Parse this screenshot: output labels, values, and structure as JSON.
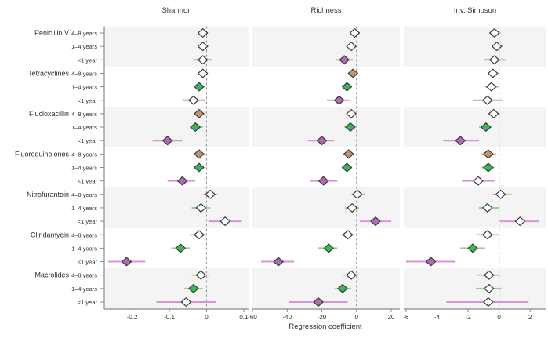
{
  "chart_data": {
    "type": "forest",
    "xlabel": "Regression coefficient",
    "panels": [
      {
        "key": "shannon",
        "title": "Shannon",
        "xlim": [
          -0.275,
          0.115
        ],
        "ticks": [
          "-0.2",
          "-0.1",
          "0",
          "0.1"
        ],
        "tick_values": [
          -0.2,
          -0.1,
          0,
          0.1
        ]
      },
      {
        "key": "richness",
        "title": "Richness",
        "xlim": [
          -60,
          25
        ],
        "ticks": [
          "-60",
          "-40",
          "-20",
          "0",
          "20"
        ],
        "tick_values": [
          -60,
          -40,
          -20,
          0,
          20
        ]
      },
      {
        "key": "inv_simpson",
        "title": "Inv. Simpson",
        "xlim": [
          -6.15,
          3.05
        ],
        "ticks": [
          "-6",
          "-4",
          "-2",
          "0",
          "2"
        ],
        "tick_values": [
          -6,
          -4,
          -2,
          0,
          2
        ]
      }
    ],
    "age_styles": {
      "age_4_8": {
        "label": "4–8 years",
        "line": "#e0c09a",
        "fill": "#c0976b"
      },
      "age_1_4": {
        "label": "1–4 years",
        "line": "#8ed48f",
        "fill": "#3cb554"
      },
      "age_lt1": {
        "label": "<1 year",
        "line": "#d994d7",
        "fill": "#b16ab0"
      }
    },
    "colors": {
      "band": "#f4f4f4",
      "zero_line": "#9a9a9a",
      "axis": "#8a8a8a",
      "marker_outline": "#3a3a3a",
      "marker_empty_fill": "#ffffff",
      "text": "#2e2e2e"
    },
    "groups": [
      {
        "name": "Penicillin V",
        "rows": [
          {
            "age": "4–8 years",
            "style": "age_4_8",
            "shannon": {
              "est": -0.01,
              "lo": -0.02,
              "hi": 0.0,
              "filled": false
            },
            "richness": {
              "est": -1,
              "lo": -3,
              "hi": 1,
              "filled": false
            },
            "inv_simpson": {
              "est": -0.3,
              "lo": -0.6,
              "hi": 0.1,
              "filled": false
            }
          },
          {
            "age": "1–4 years",
            "style": "age_1_4",
            "shannon": {
              "est": -0.01,
              "lo": -0.02,
              "hi": 0.005,
              "filled": false
            },
            "richness": {
              "est": -3,
              "lo": -5,
              "hi": 0.5,
              "filled": false
            },
            "inv_simpson": {
              "est": -0.15,
              "lo": -0.45,
              "hi": 0.2,
              "filled": false
            }
          },
          {
            "age": "<1 year",
            "style": "age_lt1",
            "shannon": {
              "est": -0.01,
              "lo": -0.035,
              "hi": 0.015,
              "filled": false
            },
            "richness": {
              "est": -7,
              "lo": -12,
              "hi": -2,
              "filled": true
            },
            "inv_simpson": {
              "est": -0.3,
              "lo": -1.0,
              "hi": 0.45,
              "filled": false
            }
          }
        ]
      },
      {
        "name": "Tetracyclines",
        "rows": [
          {
            "age": "4–8 years",
            "style": "age_4_8",
            "shannon": {
              "est": -0.01,
              "lo": -0.02,
              "hi": 0.0,
              "filled": false
            },
            "richness": {
              "est": -2,
              "lo": -4,
              "hi": 0,
              "filled": true
            },
            "inv_simpson": {
              "est": -0.4,
              "lo": -0.75,
              "hi": 0.0,
              "filled": false
            }
          },
          {
            "age": "1–4 years",
            "style": "age_1_4",
            "shannon": {
              "est": -0.02,
              "lo": -0.03,
              "hi": -0.005,
              "filled": true
            },
            "richness": {
              "est": -5.5,
              "lo": -8,
              "hi": -3,
              "filled": true
            },
            "inv_simpson": {
              "est": -0.5,
              "lo": -0.9,
              "hi": -0.05,
              "filled": false
            }
          },
          {
            "age": "<1 year",
            "style": "age_lt1",
            "shannon": {
              "est": -0.035,
              "lo": -0.065,
              "hi": -0.005,
              "filled": false
            },
            "richness": {
              "est": -10,
              "lo": -17,
              "hi": -4,
              "filled": true
            },
            "inv_simpson": {
              "est": -0.75,
              "lo": -1.7,
              "hi": 0.2,
              "filled": false
            }
          }
        ]
      },
      {
        "name": "Flucloxacillin",
        "rows": [
          {
            "age": "4–8 years",
            "style": "age_4_8",
            "shannon": {
              "est": -0.02,
              "lo": -0.035,
              "hi": -0.005,
              "filled": true
            },
            "richness": {
              "est": -3,
              "lo": -5.5,
              "hi": 0,
              "filled": false
            },
            "inv_simpson": {
              "est": -0.35,
              "lo": -0.7,
              "hi": 0.05,
              "filled": false
            }
          },
          {
            "age": "1–4 years",
            "style": "age_1_4",
            "shannon": {
              "est": -0.03,
              "lo": -0.045,
              "hi": -0.01,
              "filled": true
            },
            "richness": {
              "est": -3.5,
              "lo": -7,
              "hi": -0.5,
              "filled": true
            },
            "inv_simpson": {
              "est": -0.85,
              "lo": -1.3,
              "hi": -0.45,
              "filled": true
            }
          },
          {
            "age": "<1 year",
            "style": "age_lt1",
            "shannon": {
              "est": -0.105,
              "lo": -0.145,
              "hi": -0.065,
              "filled": true
            },
            "richness": {
              "est": -20,
              "lo": -28,
              "hi": -13,
              "filled": true
            },
            "inv_simpson": {
              "est": -2.5,
              "lo": -3.6,
              "hi": -1.3,
              "filled": true
            }
          }
        ]
      },
      {
        "name": "Fluoroquinolones",
        "rows": [
          {
            "age": "4–8 years",
            "style": "age_4_8",
            "shannon": {
              "est": -0.02,
              "lo": -0.035,
              "hi": -0.005,
              "filled": true
            },
            "richness": {
              "est": -4.5,
              "lo": -8,
              "hi": -1.5,
              "filled": true
            },
            "inv_simpson": {
              "est": -0.7,
              "lo": -1.2,
              "hi": -0.2,
              "filled": true
            }
          },
          {
            "age": "1–4 years",
            "style": "age_1_4",
            "shannon": {
              "est": -0.02,
              "lo": -0.035,
              "hi": -0.01,
              "filled": true
            },
            "richness": {
              "est": -5.5,
              "lo": -8.5,
              "hi": -2.5,
              "filled": true
            },
            "inv_simpson": {
              "est": -0.7,
              "lo": -1.15,
              "hi": -0.3,
              "filled": true
            }
          },
          {
            "age": "<1 year",
            "style": "age_lt1",
            "shannon": {
              "est": -0.065,
              "lo": -0.105,
              "hi": -0.03,
              "filled": true
            },
            "richness": {
              "est": -19,
              "lo": -27,
              "hi": -11,
              "filled": true
            },
            "inv_simpson": {
              "est": -1.35,
              "lo": -2.4,
              "hi": -0.3,
              "filled": false
            }
          }
        ]
      },
      {
        "name": "Nitrofurantoin",
        "rows": [
          {
            "age": "4–8 years",
            "style": "age_4_8",
            "shannon": {
              "est": 0.01,
              "lo": -0.01,
              "hi": 0.03,
              "filled": false
            },
            "richness": {
              "est": 0.5,
              "lo": -3,
              "hi": 5,
              "filled": false
            },
            "inv_simpson": {
              "est": 0.1,
              "lo": -0.45,
              "hi": 0.8,
              "filled": false
            }
          },
          {
            "age": "1–4 years",
            "style": "age_1_4",
            "shannon": {
              "est": -0.015,
              "lo": -0.04,
              "hi": 0.01,
              "filled": false
            },
            "richness": {
              "est": -2.5,
              "lo": -6.5,
              "hi": 1.5,
              "filled": false
            },
            "inv_simpson": {
              "est": -0.75,
              "lo": -1.3,
              "hi": 0.0,
              "filled": false
            }
          },
          {
            "age": "<1 year",
            "style": "age_lt1",
            "shannon": {
              "est": 0.05,
              "lo": 0.005,
              "hi": 0.095,
              "filled": false
            },
            "richness": {
              "est": 11,
              "lo": 2,
              "hi": 20,
              "filled": true
            },
            "inv_simpson": {
              "est": 1.35,
              "lo": 0.05,
              "hi": 2.6,
              "filled": false
            }
          }
        ]
      },
      {
        "name": "Clindamycin",
        "rows": [
          {
            "age": "4–8 years",
            "style": "age_4_8",
            "shannon": {
              "est": -0.02,
              "lo": -0.045,
              "hi": 0.0,
              "filled": false
            },
            "richness": {
              "est": -5,
              "lo": -9,
              "hi": -1.5,
              "filled": false
            },
            "inv_simpson": {
              "est": -0.75,
              "lo": -1.45,
              "hi": 0.0,
              "filled": false
            }
          },
          {
            "age": "1–4 years",
            "style": "age_1_4",
            "shannon": {
              "est": -0.07,
              "lo": -0.095,
              "hi": -0.045,
              "filled": true
            },
            "richness": {
              "est": -16,
              "lo": -22,
              "hi": -11,
              "filled": true
            },
            "inv_simpson": {
              "est": -1.7,
              "lo": -2.5,
              "hi": -0.9,
              "filled": true
            }
          },
          {
            "age": "<1 year",
            "style": "age_lt1",
            "shannon": {
              "est": -0.215,
              "lo": -0.265,
              "hi": -0.165,
              "filled": true
            },
            "richness": {
              "est": -45,
              "lo": -55,
              "hi": -36,
              "filled": true
            },
            "inv_simpson": {
              "est": -4.4,
              "lo": -6.0,
              "hi": -2.8,
              "filled": true
            }
          }
        ]
      },
      {
        "name": "Macrolides",
        "rows": [
          {
            "age": "4–8 years",
            "style": "age_4_8",
            "shannon": {
              "est": -0.015,
              "lo": -0.04,
              "hi": 0.005,
              "filled": false
            },
            "richness": {
              "est": -3,
              "lo": -7.5,
              "hi": 1,
              "filled": false
            },
            "inv_simpson": {
              "est": -0.65,
              "lo": -1.45,
              "hi": 0.05,
              "filled": false
            }
          },
          {
            "age": "1–4 years",
            "style": "age_1_4",
            "shannon": {
              "est": -0.035,
              "lo": -0.06,
              "hi": -0.01,
              "filled": true
            },
            "richness": {
              "est": -8,
              "lo": -12.5,
              "hi": -3,
              "filled": true
            },
            "inv_simpson": {
              "est": -0.65,
              "lo": -1.5,
              "hi": 0.15,
              "filled": false
            }
          },
          {
            "age": "<1 year",
            "style": "age_lt1",
            "shannon": {
              "est": -0.055,
              "lo": -0.135,
              "hi": 0.025,
              "filled": false
            },
            "richness": {
              "est": -22,
              "lo": -39,
              "hi": -5,
              "filled": true
            },
            "inv_simpson": {
              "est": -0.7,
              "lo": -3.4,
              "hi": 1.9,
              "filled": false
            }
          }
        ]
      }
    ]
  }
}
